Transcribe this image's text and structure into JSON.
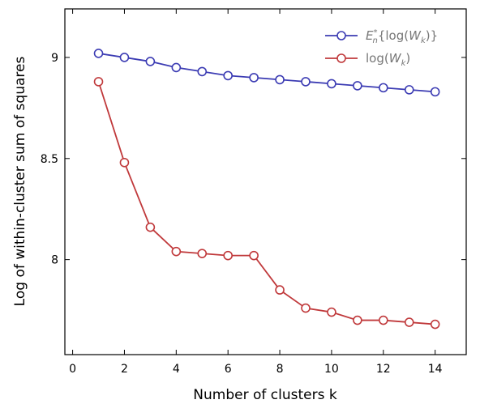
{
  "chart_data": {
    "type": "line",
    "xlabel": "Number of clusters k",
    "ylabel": "Log of within-cluster sum of squares",
    "xlim": [
      -0.3,
      15.2
    ],
    "ylim": [
      7.53,
      9.24
    ],
    "xticks": [
      0,
      2,
      4,
      6,
      8,
      10,
      12,
      14
    ],
    "xtick_labels": [
      "0",
      "2",
      "4",
      "6",
      "8",
      "10",
      "12",
      "14"
    ],
    "yticks": [
      8,
      8.5,
      9
    ],
    "ytick_labels": [
      "8",
      "8.5",
      "9"
    ],
    "grid": false,
    "legend_position": "top-right",
    "x": [
      1,
      2,
      3,
      4,
      5,
      6,
      7,
      8,
      9,
      10,
      11,
      12,
      13,
      14
    ],
    "series": [
      {
        "name": "E*n{log(Wk)}",
        "color": "#3b3bb3",
        "values": [
          9.02,
          9.0,
          8.98,
          8.95,
          8.93,
          8.91,
          8.9,
          8.89,
          8.88,
          8.87,
          8.86,
          8.85,
          8.84,
          8.83
        ]
      },
      {
        "name": "log(Wk)",
        "color": "#c0393b",
        "values": [
          8.88,
          8.48,
          8.16,
          8.04,
          8.03,
          8.02,
          8.02,
          7.85,
          7.76,
          7.74,
          7.7,
          7.7,
          7.69,
          7.68
        ]
      }
    ]
  }
}
